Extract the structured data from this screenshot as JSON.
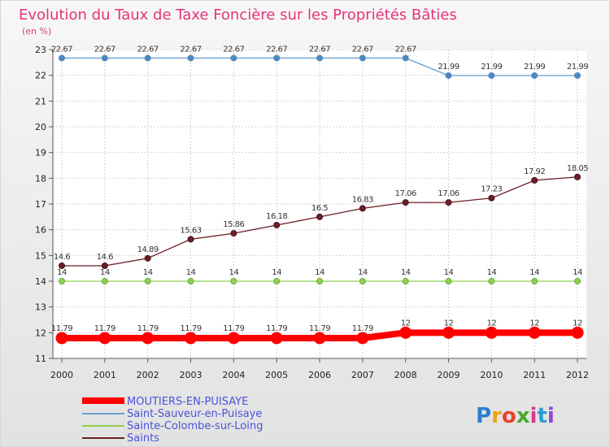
{
  "chart_data": {
    "type": "line",
    "title": "Evolution du Taux de Taxe Foncière sur les Propriétés Bâties",
    "unit_label": "(en %)",
    "x": [
      "2000",
      "2001",
      "2002",
      "2003",
      "2004",
      "2005",
      "2006",
      "2007",
      "2008",
      "2009",
      "2010",
      "2011",
      "2012"
    ],
    "ylim": [
      11,
      23
    ],
    "yticks": [
      11,
      12,
      13,
      14,
      15,
      16,
      17,
      18,
      19,
      20,
      21,
      22,
      23
    ],
    "grid": true,
    "series": [
      {
        "name": "MOUTIERS-EN-PUISAYE",
        "color": "#ff0000",
        "values": [
          11.79,
          11.79,
          11.79,
          11.79,
          11.79,
          11.79,
          11.79,
          11.79,
          12,
          12,
          12,
          12,
          12
        ],
        "labels": [
          "11.79",
          "11.79",
          "11.79",
          "11.79",
          "11.79",
          "11.79",
          "11.79",
          "11.79",
          "12",
          "12",
          "12",
          "12",
          "12"
        ]
      },
      {
        "name": "Saint-Sauveur-en-Puisaye",
        "color": "#6a9fd0",
        "values": [
          22.67,
          22.67,
          22.67,
          22.67,
          22.67,
          22.67,
          22.67,
          22.67,
          22.67,
          21.99,
          21.99,
          21.99,
          21.99
        ],
        "labels": [
          "22.67",
          "22.67",
          "22.67",
          "22.67",
          "22.67",
          "22.67",
          "22.67",
          "22.67",
          "22.67",
          "21.99",
          "21.99",
          "21.99",
          "21.99"
        ]
      },
      {
        "name": "Sainte-Colombe-sur-Loing",
        "color": "#8fd14f",
        "values": [
          14,
          14,
          14,
          14,
          14,
          14,
          14,
          14,
          14,
          14,
          14,
          14,
          14
        ],
        "labels": [
          "14",
          "14",
          "14",
          "14",
          "14",
          "14",
          "14",
          "14",
          "14",
          "14",
          "14",
          "14",
          "14"
        ]
      },
      {
        "name": "Saints",
        "color": "#6b1f26",
        "values": [
          14.6,
          14.6,
          14.89,
          15.63,
          15.86,
          16.18,
          16.5,
          16.83,
          17.06,
          17.06,
          17.23,
          17.92,
          18.05
        ],
        "labels": [
          "14.6",
          "14.6",
          "14.89",
          "15.63",
          "15.86",
          "16.18",
          "16.5",
          "16.83",
          "17.06",
          "17.06",
          "17.23",
          "17.92",
          "18.05"
        ]
      }
    ],
    "legend_position": "bottom-left"
  },
  "branding": {
    "logo_text": "Proxiti"
  }
}
